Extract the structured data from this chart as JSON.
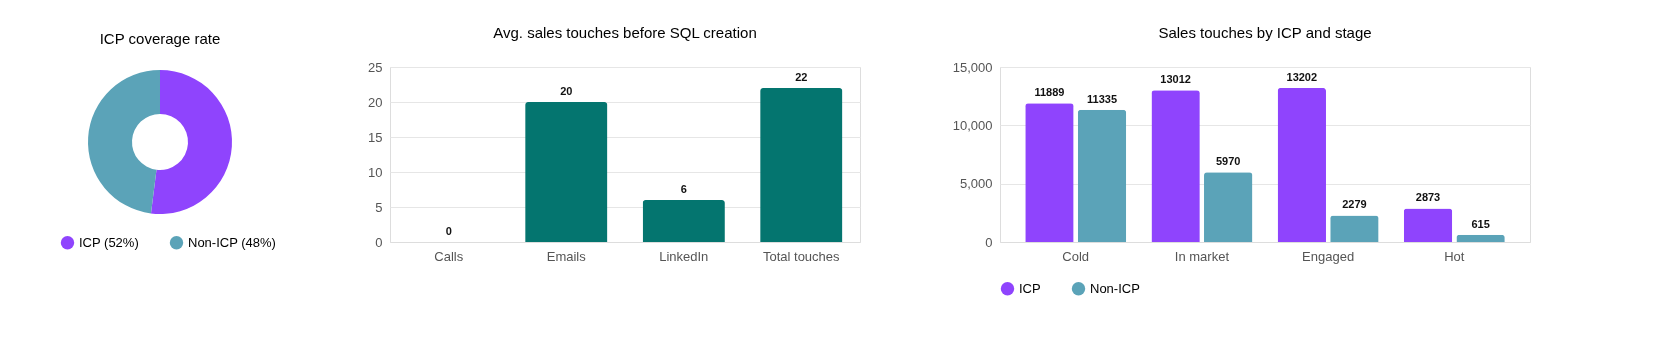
{
  "chart_data": [
    {
      "type": "donut",
      "title": "ICP coverage rate",
      "categories": [
        "ICP (52%)",
        "Non-ICP (48%)"
      ],
      "values": [
        52,
        48
      ],
      "colors": [
        "#8f44fd",
        "#5ba3b8"
      ],
      "legend": "bottom"
    },
    {
      "type": "bar",
      "title": "Avg. sales touches before SQL creation",
      "categories": [
        "Calls",
        "Emails",
        "LinkedIn",
        "Total touches"
      ],
      "values": [
        0,
        20,
        6,
        22
      ],
      "color": "#04756f",
      "ylim": [
        0,
        25
      ],
      "yticks": [
        0,
        5,
        10,
        15,
        20,
        25
      ],
      "grid": "y",
      "data_labels": true
    },
    {
      "type": "bar",
      "title": "Sales touches by ICP and stage",
      "categories": [
        "Cold",
        "In market",
        "Engaged",
        "Hot"
      ],
      "series": [
        {
          "name": "ICP",
          "color": "#8f44fd",
          "values": [
            11889,
            13012,
            13202,
            2873
          ]
        },
        {
          "name": "Non-ICP",
          "color": "#5ba3b8",
          "values": [
            11335,
            5970,
            2279,
            615
          ]
        }
      ],
      "ylim": [
        0,
        15000
      ],
      "yticks": [
        0,
        {
          "value": 5000,
          "label": "5,000"
        },
        {
          "value": 10000,
          "label": "10,000"
        },
        {
          "value": 15000,
          "label": "15,000"
        }
      ],
      "grid": "y",
      "legend": "bottom",
      "data_labels": true
    }
  ]
}
